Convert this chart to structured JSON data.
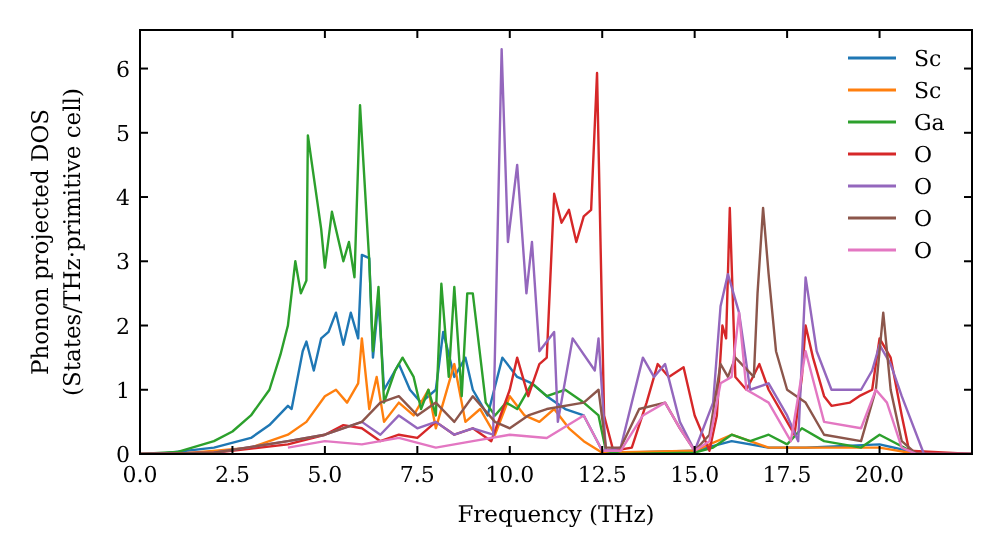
{
  "chart_data": {
    "type": "line",
    "xlabel": "Frequency (THz)",
    "ylabel": "Phonon projected DOS\n(States/THz·primitive cell)",
    "xlim": [
      0,
      22.5
    ],
    "ylim": [
      0,
      6.6
    ],
    "xticks": [
      {
        "value": 0,
        "label": "0.0"
      },
      2.5,
      {
        "value": 5,
        "label": "5.0"
      },
      7.5,
      {
        "value": 10,
        "label": "10.0"
      },
      12.5,
      {
        "value": 15,
        "label": "15.0"
      },
      17.5,
      {
        "value": 20,
        "label": "20.0"
      }
    ],
    "yticks": [
      0,
      1,
      2,
      3,
      4,
      5,
      6
    ],
    "grid": false,
    "legend": "top right",
    "series": [
      {
        "name": "Sc",
        "color": "#1f77b4",
        "x": [
          0,
          0.5,
          2,
          3,
          3.5,
          4,
          4.1,
          4.4,
          4.5,
          4.7,
          4.9,
          5.1,
          5.3,
          5.5,
          5.7,
          5.9,
          6,
          6.2,
          6.3,
          6.45,
          6.6,
          7,
          7.3,
          7.6,
          8,
          8.2,
          8.5,
          8.8,
          9,
          9.4,
          9.8,
          10.2,
          10.6,
          11,
          11.5,
          12,
          12.5,
          13,
          15,
          16,
          17,
          18,
          20,
          21,
          22.5
        ],
        "values": [
          0,
          0,
          0.1,
          0.25,
          0.45,
          0.75,
          0.7,
          1.6,
          1.75,
          1.3,
          1.8,
          1.9,
          2.2,
          1.7,
          2.2,
          1.8,
          3.1,
          3.05,
          1.5,
          2.4,
          1,
          1.4,
          1,
          0.8,
          1,
          1.9,
          1.2,
          1.5,
          1,
          0.6,
          1.5,
          1.2,
          1.1,
          0.9,
          0.7,
          0.6,
          0.05,
          0.02,
          0.05,
          0.2,
          0.1,
          0.1,
          0.15,
          0.02,
          0
        ]
      },
      {
        "name": "Sc",
        "color": "#ff7f0e",
        "x": [
          0,
          1,
          3,
          4,
          4.5,
          5,
          5.3,
          5.6,
          5.9,
          6,
          6.2,
          6.4,
          6.6,
          7,
          7.4,
          7.8,
          8,
          8.5,
          8.8,
          9.2,
          9.6,
          10,
          10.4,
          10.8,
          11.2,
          11.6,
          12,
          12.5,
          15,
          16,
          17,
          18,
          20,
          21,
          22.5
        ],
        "values": [
          0,
          0,
          0.1,
          0.3,
          0.5,
          0.9,
          1,
          0.8,
          1.1,
          1.8,
          0.7,
          1.2,
          0.5,
          0.8,
          0.6,
          1,
          0.4,
          1.4,
          0.5,
          0.7,
          0.3,
          0.9,
          0.6,
          0.5,
          0.7,
          0.4,
          0.2,
          0.02,
          0.05,
          0.3,
          0.1,
          0.1,
          0.1,
          0,
          0
        ]
      },
      {
        "name": "Ga",
        "color": "#2ca02c",
        "x": [
          0,
          1,
          2,
          2.5,
          3,
          3.5,
          3.8,
          4,
          4.2,
          4.35,
          4.5,
          4.54,
          4.9,
          5,
          5.19,
          5.5,
          5.65,
          5.8,
          5.95,
          6.2,
          6.3,
          6.45,
          6.6,
          6.9,
          7.1,
          7.4,
          7.6,
          7.8,
          8,
          8.15,
          8.35,
          8.5,
          8.7,
          8.85,
          9,
          9.35,
          9.6,
          9.9,
          10.2,
          10.6,
          11,
          11.5,
          12,
          12.4,
          12.6,
          13,
          15,
          15.5,
          16,
          16.5,
          17,
          17.5,
          17.9,
          18.5,
          19.5,
          20,
          21,
          22.5
        ],
        "values": [
          0,
          0.03,
          0.2,
          0.35,
          0.6,
          1,
          1.55,
          2,
          3,
          2.5,
          2.7,
          4.96,
          3.5,
          2.9,
          3.77,
          3,
          3.3,
          2.75,
          5.43,
          3,
          1.6,
          2.6,
          0.8,
          1.3,
          1.5,
          1.2,
          0.7,
          1,
          0.6,
          2.65,
          1.2,
          2.6,
          0.9,
          2.5,
          2.5,
          0.8,
          0.6,
          0.8,
          0.7,
          1.1,
          0.9,
          1,
          0.8,
          0.6,
          0.05,
          0,
          0.02,
          0.1,
          0.3,
          0.2,
          0.3,
          0.15,
          0.4,
          0.2,
          0.1,
          0.3,
          0,
          0
        ]
      },
      {
        "name": "O",
        "color": "#d62728",
        "x": [
          0,
          2,
          4,
          5,
          5.5,
          6,
          6.5,
          7,
          7.5,
          8,
          8.5,
          9,
          9.5,
          10,
          10.2,
          10.5,
          10.8,
          11,
          11.2,
          11.4,
          11.6,
          11.8,
          12,
          12.2,
          12.36,
          12.55,
          12.8,
          13.3,
          13.7,
          14,
          14.3,
          14.7,
          15,
          15.4,
          15.6,
          15.75,
          15.85,
          15.95,
          16.1,
          16.4,
          16.75,
          17,
          17.4,
          17.7,
          17.9,
          18,
          18.2,
          18.5,
          18.7,
          19.2,
          19.45,
          19.8,
          20,
          20.3,
          20.6,
          20.8,
          22.5
        ],
        "values": [
          0,
          0.02,
          0.15,
          0.3,
          0.45,
          0.4,
          0.2,
          0.3,
          0.25,
          0.5,
          0.3,
          0.4,
          0.2,
          1,
          1.5,
          0.9,
          1.4,
          1.5,
          4.05,
          3.6,
          3.8,
          3.3,
          3.7,
          3.8,
          5.93,
          0.6,
          0.05,
          0.1,
          0.8,
          1.4,
          1.2,
          1.35,
          0.6,
          0.05,
          0.6,
          2,
          1.8,
          3.83,
          1.2,
          1,
          1.4,
          1,
          0.6,
          0.3,
          1.2,
          2,
          1.5,
          0.9,
          0.75,
          0.8,
          0.9,
          1,
          1.8,
          1.5,
          0.6,
          0.05,
          0
        ]
      },
      {
        "name": "O",
        "color": "#9467bd",
        "x": [
          0,
          2,
          4,
          5,
          6,
          6.5,
          7,
          7.5,
          8,
          8.5,
          9,
          9.55,
          9.78,
          9.95,
          10.2,
          10.45,
          10.6,
          10.8,
          11.2,
          11.3,
          11.7,
          12.3,
          12.4,
          12.6,
          13,
          13.6,
          13.9,
          14.2,
          14.6,
          15,
          15.5,
          15.7,
          15.9,
          16.2,
          16.5,
          17,
          17.5,
          17.8,
          18,
          18.3,
          18.7,
          19.5,
          19.8,
          20,
          20.3,
          20.6,
          21.2,
          22.5
        ],
        "values": [
          0,
          0.02,
          0.2,
          0.3,
          0.5,
          0.3,
          0.6,
          0.4,
          0.5,
          0.3,
          0.4,
          0.3,
          6.3,
          3.3,
          4.5,
          2.5,
          3.3,
          1.6,
          1.9,
          0.5,
          1.8,
          1.3,
          1.8,
          0.05,
          0.1,
          1.5,
          1.2,
          1.4,
          0.5,
          0.05,
          0.8,
          2.3,
          2.8,
          2.2,
          1,
          1.1,
          0.6,
          0.2,
          2.75,
          1.6,
          1,
          1,
          1.3,
          1.7,
          1.4,
          0.9,
          0,
          0
        ]
      },
      {
        "name": "O",
        "color": "#8c564b",
        "x": [
          0,
          2,
          4,
          5,
          6,
          6.5,
          7,
          7.5,
          8,
          8.5,
          9,
          9.6,
          10,
          10.5,
          11,
          12,
          12.4,
          12.6,
          13,
          13.5,
          14.2,
          14.6,
          15,
          15.4,
          15.7,
          15.9,
          16.1,
          16.6,
          16.7,
          16.85,
          17,
          17.2,
          17.5,
          18,
          18.5,
          19.5,
          19.9,
          20.1,
          20.3,
          20.6,
          21,
          22.5
        ],
        "values": [
          0,
          0.02,
          0.2,
          0.3,
          0.5,
          0.8,
          0.9,
          0.6,
          0.8,
          0.5,
          0.9,
          0.5,
          0.4,
          0.6,
          0.7,
          0.8,
          1,
          0.1,
          0.1,
          0.7,
          0.8,
          0.4,
          0.05,
          0.3,
          1.4,
          1.2,
          1.5,
          1.2,
          2.5,
          3.83,
          2.8,
          1.6,
          1,
          0.8,
          0.3,
          0.2,
          1,
          2.2,
          1,
          0.2,
          0,
          0
        ]
      },
      {
        "name": "O",
        "color": "#e377c2",
        "x": [
          4,
          5,
          6,
          7,
          8,
          9,
          10,
          11,
          12,
          12.5,
          13,
          13.6,
          14.2,
          14.6,
          15,
          15.4,
          15.7,
          16,
          16.2,
          16.4,
          17,
          17.6,
          18,
          18.5,
          19.5,
          19.9,
          20.2,
          20.6,
          21,
          22.5
        ],
        "values": [
          0.1,
          0.2,
          0.15,
          0.25,
          0.1,
          0.2,
          0.3,
          0.25,
          0.6,
          0.05,
          0.05,
          0.6,
          0.8,
          0.4,
          0.05,
          0.2,
          1.1,
          1.2,
          2.2,
          1,
          0.8,
          0.2,
          1.6,
          0.5,
          0.4,
          1,
          0.8,
          0.1,
          0,
          0
        ]
      }
    ]
  }
}
